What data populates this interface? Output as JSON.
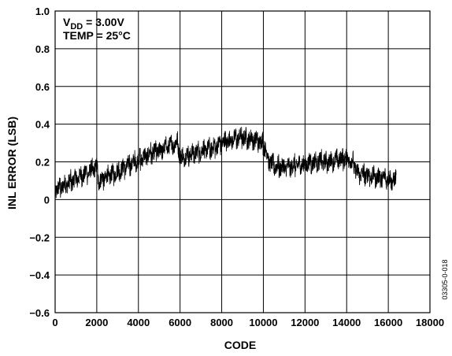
{
  "chart_data": {
    "type": "line",
    "xlabel": "CODE",
    "ylabel": "INL ERROR (LSB)",
    "xlim": [
      0,
      18000
    ],
    "ylim": [
      -0.6,
      1.0
    ],
    "x_ticks": [
      "0",
      "2000",
      "4000",
      "6000",
      "8000",
      "10000",
      "12000",
      "14000",
      "16000",
      "18000"
    ],
    "y_ticks": [
      "−0.6",
      "−0.4",
      "−0.2",
      "0",
      "0.2",
      "0.4",
      "0.6",
      "0.8",
      "1.0"
    ],
    "grid": true,
    "annotations": {
      "vdd_prefix": "V",
      "vdd_subscript": "DD",
      "vdd_value": " = 3.00V",
      "temp": "TEMP = 25°C"
    },
    "figure_id": "03305-0-018",
    "line_color": "#000000",
    "series": [
      {
        "x": [
          0,
          500,
          1000,
          1500,
          2000,
          2100,
          2500,
          3000,
          3500,
          4000,
          4500,
          5000,
          5500,
          5900,
          6000,
          6500,
          7000,
          7500,
          8000,
          8500,
          9000,
          9500,
          10000,
          10300,
          10500,
          11000,
          11500,
          12000,
          12500,
          13000,
          13500,
          14000,
          14300,
          14500,
          15000,
          15500,
          16000,
          16383
        ],
        "values": [
          0.05,
          0.08,
          0.11,
          0.14,
          0.17,
          0.1,
          0.12,
          0.15,
          0.18,
          0.21,
          0.24,
          0.26,
          0.29,
          0.3,
          0.22,
          0.24,
          0.26,
          0.27,
          0.3,
          0.32,
          0.33,
          0.32,
          0.3,
          0.2,
          0.18,
          0.17,
          0.18,
          0.19,
          0.2,
          0.2,
          0.21,
          0.22,
          0.2,
          0.14,
          0.13,
          0.12,
          0.11,
          0.1
        ],
        "noise_amplitude": 0.045
      }
    ]
  }
}
